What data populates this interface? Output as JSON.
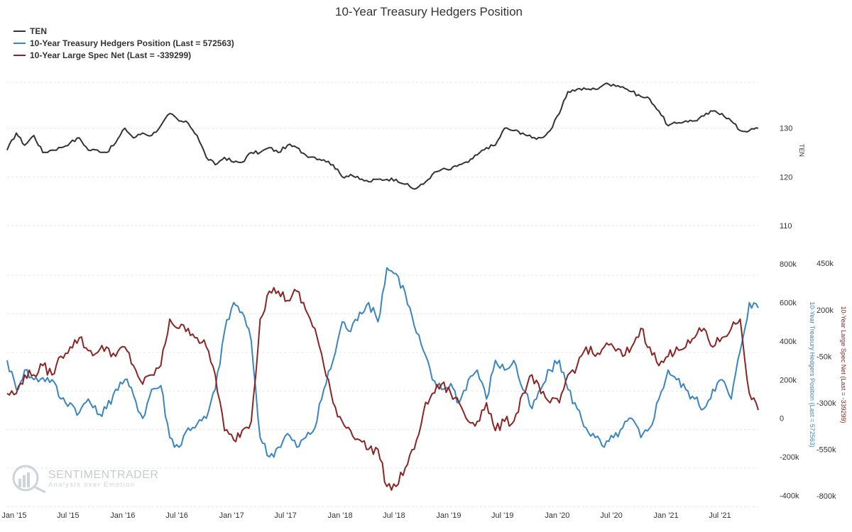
{
  "chart_data": {
    "type": "line",
    "title": "10-Year Treasury Hedgers Position",
    "legend_placement": "top-left",
    "grid": true,
    "x": {
      "start": "2015-01",
      "end": "2021-12",
      "tick_labels": [
        "Jan '15",
        "Jul '15",
        "Jan '16",
        "Jul '16",
        "Jan '17",
        "Jul '17",
        "Jan '18",
        "Jul '18",
        "Jan '19",
        "Jul '19",
        "Jan '20",
        "Jul '20",
        "Jan '21",
        "Jul '21"
      ]
    },
    "panels": [
      {
        "id": "price",
        "ylabel": "TEN",
        "ylim": [
          110,
          140
        ],
        "y_ticks": [
          110,
          120,
          130
        ],
        "y_tick_labels": [
          "110",
          "120",
          "130"
        ]
      },
      {
        "id": "positions",
        "left_axis": {
          "ylabel": "10-Year Treasury Hedgers Position (Last = 572563)",
          "ylim": [
            -450000,
            900000
          ],
          "y_ticks": [
            -400000,
            -200000,
            0,
            200000,
            400000,
            600000,
            800000
          ],
          "y_tick_labels": [
            "-400k",
            "-200k",
            "0",
            "200k",
            "400k",
            "600k",
            "800k"
          ]
        },
        "right_axis": {
          "ylabel": "10-Year Large Spec Net (Last = -339299)",
          "ylim": [
            -850000,
            550000
          ],
          "y_ticks": [
            -800000,
            -550000,
            -300000,
            -50000,
            200000,
            450000
          ],
          "y_tick_labels": [
            "-800k",
            "-550k",
            "-300k",
            "-50k",
            "200k",
            "450k"
          ]
        }
      }
    ],
    "series": [
      {
        "name": "TEN",
        "panel": "price",
        "axis": "left",
        "color": "#333333",
        "points": [
          [
            "2015-01",
            125.5
          ],
          [
            "2015-02",
            129.0
          ],
          [
            "2015-03",
            126.5
          ],
          [
            "2015-04",
            128.5
          ],
          [
            "2015-05",
            125.0
          ],
          [
            "2015-06",
            125.5
          ],
          [
            "2015-07",
            126.0
          ],
          [
            "2015-08",
            127.0
          ],
          [
            "2015-09",
            128.0
          ],
          [
            "2015-10",
            125.5
          ],
          [
            "2015-11",
            125.5
          ],
          [
            "2015-12",
            125.0
          ],
          [
            "2016-01",
            127.0
          ],
          [
            "2016-02",
            130.0
          ],
          [
            "2016-03",
            128.0
          ],
          [
            "2016-04",
            129.0
          ],
          [
            "2016-05",
            128.5
          ],
          [
            "2016-06",
            130.5
          ],
          [
            "2016-07",
            133.0
          ],
          [
            "2016-08",
            131.5
          ],
          [
            "2016-09",
            131.0
          ],
          [
            "2016-10",
            128.5
          ],
          [
            "2016-11",
            124.0
          ],
          [
            "2016-12",
            122.5
          ],
          [
            "2017-01",
            124.0
          ],
          [
            "2017-02",
            123.0
          ],
          [
            "2017-03",
            123.0
          ],
          [
            "2017-04",
            125.0
          ],
          [
            "2017-05",
            125.0
          ],
          [
            "2017-06",
            126.0
          ],
          [
            "2017-07",
            125.0
          ],
          [
            "2017-08",
            126.5
          ],
          [
            "2017-09",
            126.0
          ],
          [
            "2017-10",
            124.5
          ],
          [
            "2017-11",
            124.0
          ],
          [
            "2017-12",
            123.5
          ],
          [
            "2018-01",
            122.5
          ],
          [
            "2018-02",
            120.0
          ],
          [
            "2018-03",
            120.5
          ],
          [
            "2018-04",
            119.5
          ],
          [
            "2018-05",
            119.0
          ],
          [
            "2018-06",
            119.5
          ],
          [
            "2018-07",
            119.5
          ],
          [
            "2018-08",
            119.5
          ],
          [
            "2018-09",
            118.5
          ],
          [
            "2018-10",
            117.5
          ],
          [
            "2018-11",
            118.5
          ],
          [
            "2018-12",
            120.5
          ],
          [
            "2019-01",
            121.5
          ],
          [
            "2019-02",
            121.5
          ],
          [
            "2019-03",
            122.5
          ],
          [
            "2019-04",
            123.0
          ],
          [
            "2019-05",
            124.5
          ],
          [
            "2019-06",
            126.0
          ],
          [
            "2019-07",
            126.5
          ],
          [
            "2019-08",
            130.0
          ],
          [
            "2019-09",
            129.5
          ],
          [
            "2019-10",
            129.0
          ],
          [
            "2019-11",
            128.0
          ],
          [
            "2019-12",
            128.0
          ],
          [
            "2020-01",
            129.5
          ],
          [
            "2020-02",
            133.0
          ],
          [
            "2020-03",
            137.5
          ],
          [
            "2020-04",
            138.0
          ],
          [
            "2020-05",
            138.0
          ],
          [
            "2020-06",
            138.0
          ],
          [
            "2020-07",
            139.0
          ],
          [
            "2020-08",
            139.0
          ],
          [
            "2020-09",
            138.5
          ],
          [
            "2020-10",
            137.5
          ],
          [
            "2020-11",
            136.5
          ],
          [
            "2020-12",
            136.0
          ],
          [
            "2021-01",
            133.5
          ],
          [
            "2021-02",
            130.5
          ],
          [
            "2021-03",
            131.0
          ],
          [
            "2021-04",
            131.5
          ],
          [
            "2021-05",
            131.5
          ],
          [
            "2021-06",
            132.5
          ],
          [
            "2021-07",
            133.5
          ],
          [
            "2021-08",
            133.0
          ],
          [
            "2021-09",
            131.5
          ],
          [
            "2021-10",
            129.5
          ],
          [
            "2021-11",
            129.5
          ],
          [
            "2021-12",
            130.0
          ]
        ]
      },
      {
        "name": "10-Year Treasury Hedgers Position (Last = 572563)",
        "panel": "positions",
        "axis": "left",
        "color": "#3a85c1",
        "points": [
          [
            "2015-01",
            300000
          ],
          [
            "2015-02",
            150000
          ],
          [
            "2015-03",
            250000
          ],
          [
            "2015-04",
            200000
          ],
          [
            "2015-05",
            210000
          ],
          [
            "2015-06",
            200000
          ],
          [
            "2015-07",
            100000
          ],
          [
            "2015-08",
            80000
          ],
          [
            "2015-09",
            30000
          ],
          [
            "2015-10",
            100000
          ],
          [
            "2015-11",
            20000
          ],
          [
            "2015-12",
            50000
          ],
          [
            "2016-01",
            150000
          ],
          [
            "2016-02",
            200000
          ],
          [
            "2016-03",
            120000
          ],
          [
            "2016-04",
            0
          ],
          [
            "2016-05",
            150000
          ],
          [
            "2016-06",
            170000
          ],
          [
            "2016-07",
            -100000
          ],
          [
            "2016-08",
            -150000
          ],
          [
            "2016-09",
            -50000
          ],
          [
            "2016-10",
            -30000
          ],
          [
            "2016-11",
            0
          ],
          [
            "2016-12",
            150000
          ],
          [
            "2017-01",
            450000
          ],
          [
            "2017-02",
            600000
          ],
          [
            "2017-03",
            550000
          ],
          [
            "2017-04",
            400000
          ],
          [
            "2017-05",
            -100000
          ],
          [
            "2017-06",
            -200000
          ],
          [
            "2017-07",
            -150000
          ],
          [
            "2017-08",
            -80000
          ],
          [
            "2017-09",
            -150000
          ],
          [
            "2017-10",
            -100000
          ],
          [
            "2017-11",
            -50000
          ],
          [
            "2017-12",
            150000
          ],
          [
            "2018-01",
            300000
          ],
          [
            "2018-02",
            500000
          ],
          [
            "2018-03",
            450000
          ],
          [
            "2018-04",
            550000
          ],
          [
            "2018-05",
            600000
          ],
          [
            "2018-06",
            500000
          ],
          [
            "2018-07",
            780000
          ],
          [
            "2018-08",
            750000
          ],
          [
            "2018-09",
            650000
          ],
          [
            "2018-10",
            480000
          ],
          [
            "2018-11",
            350000
          ],
          [
            "2018-12",
            200000
          ],
          [
            "2019-01",
            150000
          ],
          [
            "2019-02",
            180000
          ],
          [
            "2019-03",
            80000
          ],
          [
            "2019-04",
            200000
          ],
          [
            "2019-05",
            250000
          ],
          [
            "2019-06",
            100000
          ],
          [
            "2019-07",
            300000
          ],
          [
            "2019-08",
            250000
          ],
          [
            "2019-09",
            300000
          ],
          [
            "2019-10",
            150000
          ],
          [
            "2019-11",
            50000
          ],
          [
            "2019-12",
            150000
          ],
          [
            "2020-01",
            250000
          ],
          [
            "2020-02",
            300000
          ],
          [
            "2020-03",
            150000
          ],
          [
            "2020-04",
            50000
          ],
          [
            "2020-05",
            -50000
          ],
          [
            "2020-06",
            -100000
          ],
          [
            "2020-07",
            -150000
          ],
          [
            "2020-08",
            -100000
          ],
          [
            "2020-09",
            -50000
          ],
          [
            "2020-10",
            0
          ],
          [
            "2020-11",
            -100000
          ],
          [
            "2020-12",
            -50000
          ],
          [
            "2021-01",
            100000
          ],
          [
            "2021-02",
            250000
          ],
          [
            "2021-03",
            200000
          ],
          [
            "2021-04",
            150000
          ],
          [
            "2021-05",
            100000
          ],
          [
            "2021-06",
            50000
          ],
          [
            "2021-07",
            150000
          ],
          [
            "2021-08",
            200000
          ],
          [
            "2021-09",
            100000
          ],
          [
            "2021-10",
            350000
          ],
          [
            "2021-11",
            600000
          ],
          [
            "2021-12",
            572563
          ]
        ]
      },
      {
        "name": "10-Year Large Spec Net (Last = -339299)",
        "panel": "positions",
        "axis": "right",
        "color": "#8b2525",
        "points": [
          [
            "2015-01",
            -250000
          ],
          [
            "2015-02",
            -250000
          ],
          [
            "2015-03",
            -150000
          ],
          [
            "2015-04",
            -150000
          ],
          [
            "2015-05",
            -100000
          ],
          [
            "2015-06",
            -150000
          ],
          [
            "2015-07",
            -50000
          ],
          [
            "2015-08",
            0
          ],
          [
            "2015-09",
            50000
          ],
          [
            "2015-10",
            -20000
          ],
          [
            "2015-11",
            -30000
          ],
          [
            "2015-12",
            0
          ],
          [
            "2016-01",
            -50000
          ],
          [
            "2016-02",
            0
          ],
          [
            "2016-03",
            -100000
          ],
          [
            "2016-04",
            -200000
          ],
          [
            "2016-05",
            -150000
          ],
          [
            "2016-06",
            -100000
          ],
          [
            "2016-07",
            150000
          ],
          [
            "2016-08",
            100000
          ],
          [
            "2016-09",
            100000
          ],
          [
            "2016-10",
            50000
          ],
          [
            "2016-11",
            0
          ],
          [
            "2016-12",
            -150000
          ],
          [
            "2017-01",
            -450000
          ],
          [
            "2017-02",
            -500000
          ],
          [
            "2017-03",
            -450000
          ],
          [
            "2017-04",
            -400000
          ],
          [
            "2017-05",
            150000
          ],
          [
            "2017-06",
            300000
          ],
          [
            "2017-07",
            300000
          ],
          [
            "2017-08",
            250000
          ],
          [
            "2017-09",
            300000
          ],
          [
            "2017-10",
            200000
          ],
          [
            "2017-11",
            100000
          ],
          [
            "2017-12",
            -100000
          ],
          [
            "2018-01",
            -300000
          ],
          [
            "2018-02",
            -400000
          ],
          [
            "2018-03",
            -450000
          ],
          [
            "2018-04",
            -500000
          ],
          [
            "2018-05",
            -550000
          ],
          [
            "2018-06",
            -550000
          ],
          [
            "2018-07",
            -750000
          ],
          [
            "2018-08",
            -750000
          ],
          [
            "2018-09",
            -650000
          ],
          [
            "2018-10",
            -550000
          ],
          [
            "2018-11",
            -350000
          ],
          [
            "2018-12",
            -250000
          ],
          [
            "2019-01",
            -200000
          ],
          [
            "2019-02",
            -250000
          ],
          [
            "2019-03",
            -300000
          ],
          [
            "2019-04",
            -400000
          ],
          [
            "2019-05",
            -400000
          ],
          [
            "2019-06",
            -300000
          ],
          [
            "2019-07",
            -450000
          ],
          [
            "2019-08",
            -400000
          ],
          [
            "2019-09",
            -400000
          ],
          [
            "2019-10",
            -250000
          ],
          [
            "2019-11",
            -150000
          ],
          [
            "2019-12",
            -250000
          ],
          [
            "2020-01",
            -300000
          ],
          [
            "2020-02",
            -300000
          ],
          [
            "2020-03",
            -150000
          ],
          [
            "2020-04",
            -100000
          ],
          [
            "2020-05",
            0
          ],
          [
            "2020-06",
            -50000
          ],
          [
            "2020-07",
            0
          ],
          [
            "2020-08",
            0
          ],
          [
            "2020-09",
            -50000
          ],
          [
            "2020-10",
            0
          ],
          [
            "2020-11",
            100000
          ],
          [
            "2020-12",
            0
          ],
          [
            "2021-01",
            -100000
          ],
          [
            "2021-02",
            -50000
          ],
          [
            "2021-03",
            0
          ],
          [
            "2021-04",
            0
          ],
          [
            "2021-05",
            50000
          ],
          [
            "2021-06",
            100000
          ],
          [
            "2021-07",
            0
          ],
          [
            "2021-08",
            50000
          ],
          [
            "2021-09",
            100000
          ],
          [
            "2021-10",
            150000
          ],
          [
            "2021-11",
            -250000
          ],
          [
            "2021-12",
            -339299
          ]
        ]
      }
    ]
  },
  "watermark": {
    "brand": "SENTIMENTRADER",
    "tagline": "Analysis over Emotion"
  }
}
